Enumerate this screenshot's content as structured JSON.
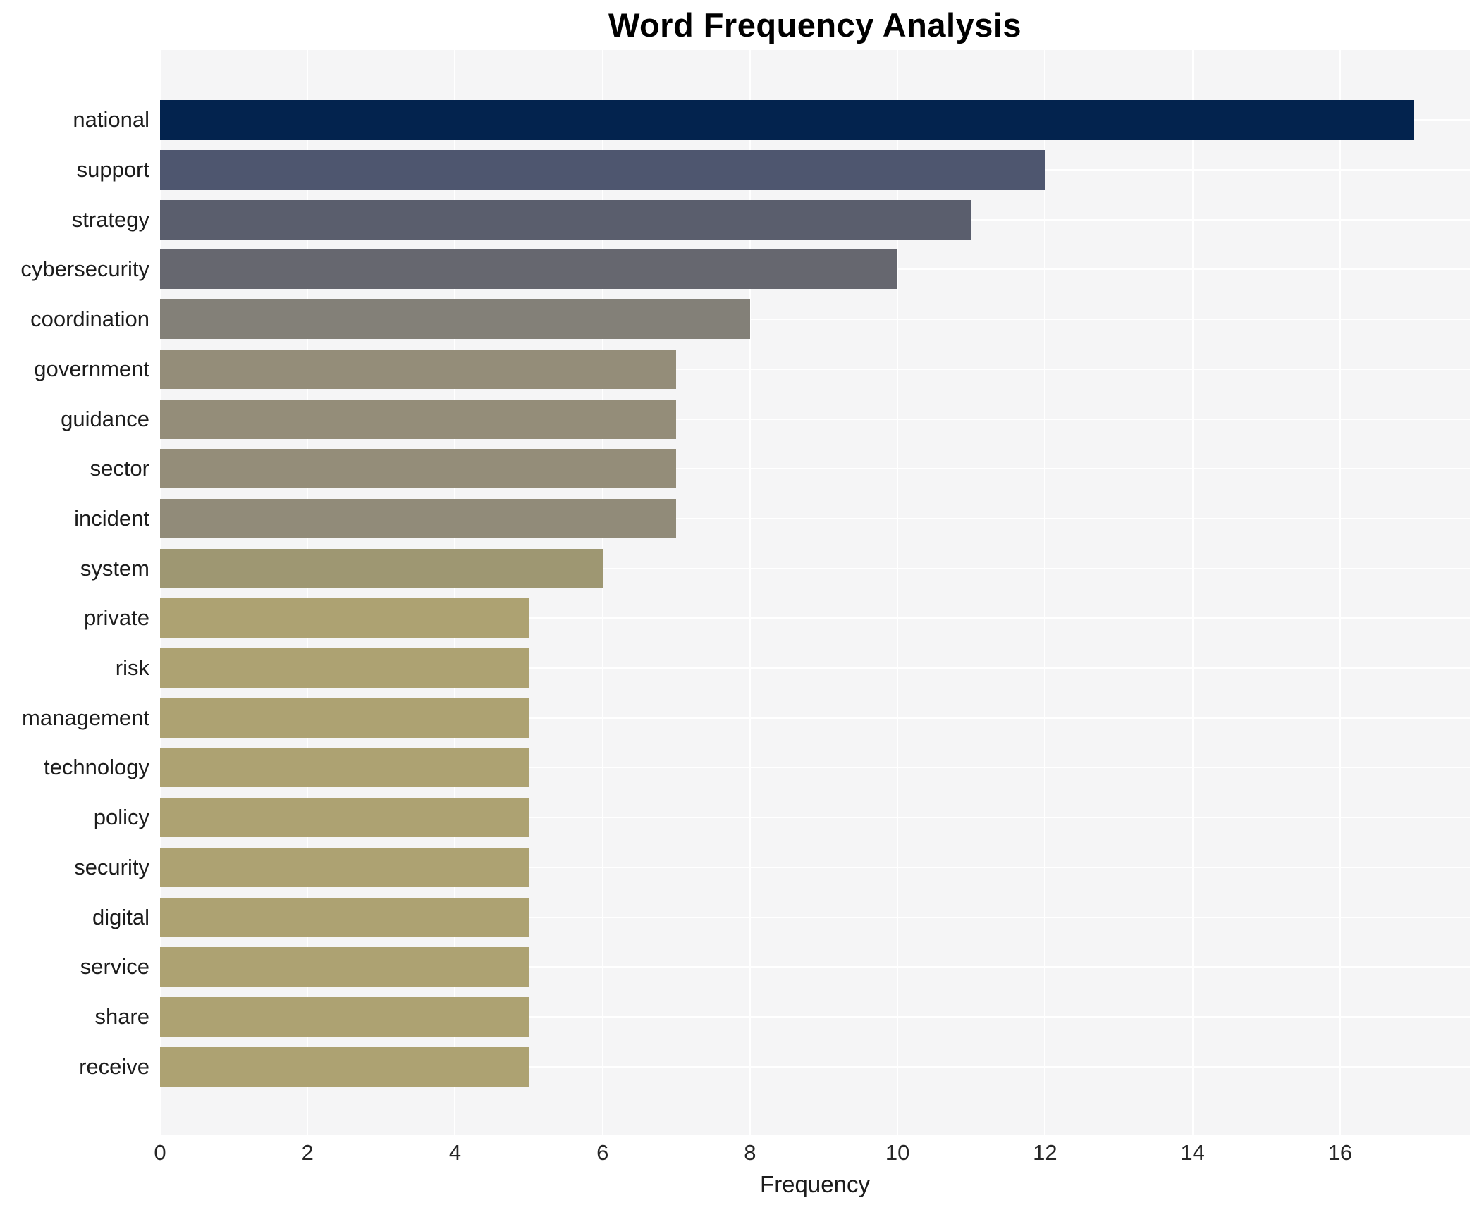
{
  "chart_data": {
    "type": "bar",
    "orientation": "horizontal",
    "title": "Word Frequency Analysis",
    "xlabel": "Frequency",
    "ylabel": "",
    "categories": [
      "national",
      "support",
      "strategy",
      "cybersecurity",
      "coordination",
      "government",
      "guidance",
      "sector",
      "incident",
      "system",
      "private",
      "risk",
      "management",
      "technology",
      "policy",
      "security",
      "digital",
      "service",
      "share",
      "receive"
    ],
    "values": [
      17,
      12,
      11,
      10,
      8,
      7,
      7,
      7,
      7,
      6,
      5,
      5,
      5,
      5,
      5,
      5,
      5,
      5,
      5,
      5
    ],
    "bar_colors": [
      "#03234e",
      "#4e566f",
      "#5a5e6d",
      "#66676f",
      "#838078",
      "#948d79",
      "#948d79",
      "#948d79",
      "#918b79",
      "#9e9772",
      "#ada272",
      "#ada272",
      "#ada272",
      "#ada272",
      "#ada272",
      "#ada272",
      "#ada272",
      "#ada272",
      "#ada272",
      "#ada272"
    ],
    "xticks": [
      0,
      2,
      4,
      6,
      8,
      10,
      12,
      14,
      16
    ],
    "xlim": [
      0,
      17.76
    ],
    "grid": "white vertical gridlines at x ticks and white horizontal gridlines at category centers on light gray panel",
    "legend": "none",
    "panel_bg": "#f5f5f6",
    "grid_color": "#ffffff",
    "title_color": "#000000",
    "tick_color": "#262626"
  }
}
